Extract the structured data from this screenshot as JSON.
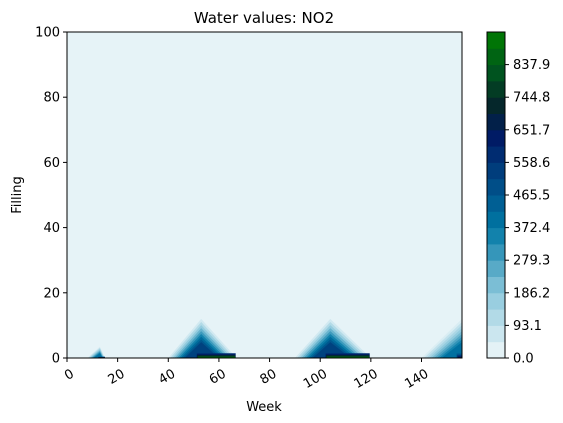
{
  "chart_data": {
    "type": "heatmap",
    "title": "Water values: NO2",
    "xlabel": "Week",
    "ylabel": "Filling",
    "xlim": [
      0,
      156
    ],
    "ylim": [
      0,
      100
    ],
    "x_ticks": [
      "0",
      "20",
      "40",
      "60",
      "80",
      "100",
      "120",
      "140"
    ],
    "x_tick_values": [
      0,
      20,
      40,
      60,
      80,
      100,
      120,
      140
    ],
    "y_ticks": [
      "0",
      "20",
      "40",
      "60",
      "80",
      "100"
    ],
    "y_tick_values": [
      0,
      20,
      40,
      60,
      80,
      100
    ],
    "colorbar": {
      "min": 0.0,
      "max": 931.0,
      "levels": 20,
      "colormap": "ocean_r",
      "tick_labels": [
        "0.0",
        "93.1",
        "186.2",
        "279.3",
        "372.4",
        "465.5",
        "558.6",
        "651.7",
        "744.8",
        "837.9"
      ],
      "tick_values": [
        0.0,
        93.1,
        186.2,
        279.3,
        372.4,
        465.5,
        558.6,
        651.7,
        744.8,
        837.9
      ]
    },
    "background_value": 0.0,
    "peaks": [
      {
        "x_start": 8,
        "x_peak": 13,
        "x_end": 15,
        "max_filling": 3.5,
        "bottom_value": 700
      },
      {
        "x_start": 40,
        "x_peak": 53,
        "x_end": 67,
        "max_filling": 12.0,
        "bottom_value": 931
      },
      {
        "x_start": 90,
        "x_peak": 104,
        "x_end": 120,
        "max_filling": 12.0,
        "bottom_value": 931
      },
      {
        "x_start": 140,
        "x_peak": 156,
        "x_end": 156,
        "max_filling": 12.0,
        "bottom_value": 700
      }
    ]
  }
}
